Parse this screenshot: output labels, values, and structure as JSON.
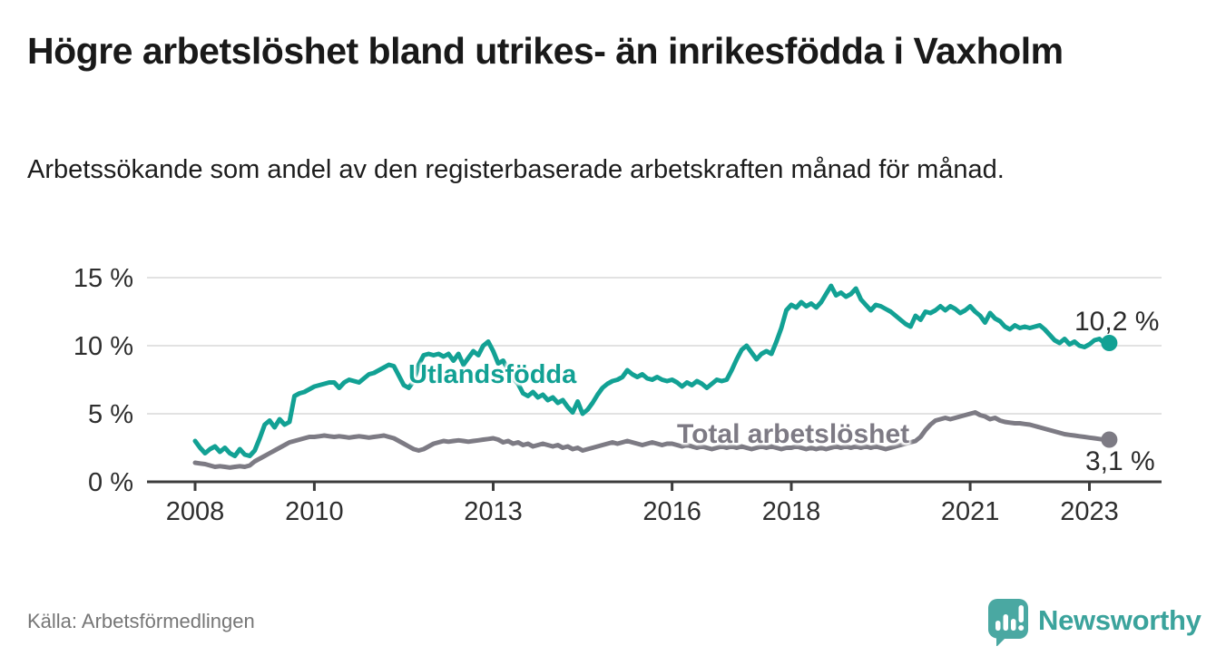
{
  "header": {
    "title": "Högre arbetslöshet bland utrikes- än inrikesfödda i Vaxholm",
    "subtitle": "Arbetssökande som andel av den registerbaserade arbetskraften månad för månad."
  },
  "footer": {
    "source": "Källa: Arbetsförmedlingen",
    "brand": "Newsworthy"
  },
  "colors": {
    "utlandsfodda_line": "#12a194",
    "total_line": "#7d7b84",
    "gridline": "#d9d9d9",
    "axis": "#3c3c3c",
    "title_text": "#191919",
    "tick_text": "#2e2e2e",
    "source_text": "#767676",
    "brand_teal": "#4aa8a2"
  },
  "chart_data": {
    "type": "line",
    "title": "Högre arbetslöshet bland utrikes- än inrikesfödda i Vaxholm",
    "xlabel": "",
    "ylabel": "",
    "x_start_year": 2008,
    "frequency": "monthly",
    "ylim": [
      0,
      15
    ],
    "ytick_values": [
      0,
      5,
      10,
      15
    ],
    "yticks": [
      "0 %",
      "5 %",
      "10 %",
      "15 %"
    ],
    "xticks": [
      2008,
      2010,
      2013,
      2016,
      2018,
      2021,
      2023
    ],
    "grid": "horizontal",
    "legend_position": "inline-labels",
    "series": [
      {
        "name": "Utlandsfödda",
        "color": "#12a194",
        "end_label": "10,2 %",
        "end_value": 10.2,
        "values": [
          3.0,
          2.5,
          2.1,
          2.4,
          2.6,
          2.2,
          2.5,
          2.1,
          1.9,
          2.4,
          2.0,
          1.9,
          2.3,
          3.2,
          4.2,
          4.5,
          4.0,
          4.6,
          4.2,
          4.4,
          6.3,
          6.5,
          6.6,
          6.8,
          7.0,
          7.1,
          7.2,
          7.3,
          7.3,
          6.9,
          7.3,
          7.5,
          7.4,
          7.3,
          7.6,
          7.9,
          8.0,
          8.2,
          8.4,
          8.6,
          8.5,
          7.8,
          7.1,
          6.9,
          7.4,
          8.6,
          9.3,
          9.4,
          9.3,
          9.4,
          9.2,
          9.4,
          8.9,
          9.4,
          8.6,
          9.1,
          9.6,
          9.3,
          10.0,
          10.3,
          9.6,
          8.7,
          8.9,
          8.2,
          7.6,
          7.2,
          6.5,
          6.3,
          6.6,
          6.2,
          6.4,
          6.0,
          6.2,
          5.8,
          6.0,
          5.5,
          5.1,
          5.9,
          5.0,
          5.3,
          5.8,
          6.4,
          6.9,
          7.2,
          7.4,
          7.5,
          7.7,
          8.2,
          7.9,
          7.7,
          7.9,
          7.6,
          7.5,
          7.7,
          7.5,
          7.4,
          7.5,
          7.3,
          7.0,
          7.3,
          7.1,
          7.4,
          7.2,
          6.9,
          7.2,
          7.5,
          7.4,
          7.5,
          8.2,
          9.0,
          9.7,
          10.0,
          9.5,
          9.0,
          9.4,
          9.6,
          9.4,
          10.3,
          11.3,
          12.6,
          13.0,
          12.8,
          13.2,
          12.9,
          13.1,
          12.8,
          13.2,
          13.8,
          14.4,
          13.7,
          13.9,
          13.6,
          13.8,
          14.2,
          13.4,
          13.0,
          12.6,
          13.0,
          12.9,
          12.7,
          12.5,
          12.2,
          11.9,
          11.6,
          11.4,
          12.2,
          11.9,
          12.5,
          12.4,
          12.6,
          12.9,
          12.6,
          12.9,
          12.7,
          12.4,
          12.6,
          12.9,
          12.5,
          12.2,
          11.7,
          12.4,
          12.0,
          11.8,
          11.4,
          11.2,
          11.5,
          11.3,
          11.4,
          11.3,
          11.4,
          11.5,
          11.2,
          10.8,
          10.4,
          10.2,
          10.5,
          10.1,
          10.3,
          10.0,
          9.9,
          10.1,
          10.4,
          10.5,
          10.2,
          10.2
        ]
      },
      {
        "name": "Total arbetslöshet",
        "color": "#7d7b84",
        "end_label": "3,1 %",
        "end_value": 3.1,
        "values": [
          1.4,
          1.35,
          1.3,
          1.2,
          1.1,
          1.15,
          1.1,
          1.05,
          1.1,
          1.15,
          1.1,
          1.2,
          1.5,
          1.7,
          1.9,
          2.1,
          2.3,
          2.5,
          2.7,
          2.9,
          3.0,
          3.1,
          3.2,
          3.3,
          3.3,
          3.35,
          3.4,
          3.35,
          3.3,
          3.35,
          3.3,
          3.25,
          3.3,
          3.35,
          3.3,
          3.25,
          3.3,
          3.35,
          3.4,
          3.3,
          3.2,
          3.0,
          2.8,
          2.6,
          2.4,
          2.3,
          2.4,
          2.6,
          2.8,
          2.9,
          3.0,
          2.95,
          3.0,
          3.05,
          3.0,
          2.95,
          3.0,
          3.05,
          3.1,
          3.15,
          3.2,
          3.1,
          2.9,
          3.0,
          2.8,
          2.9,
          2.7,
          2.8,
          2.6,
          2.7,
          2.8,
          2.7,
          2.6,
          2.7,
          2.5,
          2.6,
          2.4,
          2.5,
          2.3,
          2.4,
          2.5,
          2.6,
          2.7,
          2.8,
          2.9,
          2.8,
          2.9,
          3.0,
          2.9,
          2.8,
          2.7,
          2.8,
          2.9,
          2.8,
          2.7,
          2.8,
          2.8,
          2.7,
          2.6,
          2.7,
          2.6,
          2.5,
          2.6,
          2.5,
          2.4,
          2.5,
          2.6,
          2.5,
          2.6,
          2.5,
          2.6,
          2.5,
          2.4,
          2.5,
          2.6,
          2.5,
          2.6,
          2.5,
          2.4,
          2.5,
          2.5,
          2.6,
          2.5,
          2.4,
          2.5,
          2.4,
          2.5,
          2.4,
          2.5,
          2.6,
          2.5,
          2.6,
          2.5,
          2.6,
          2.5,
          2.6,
          2.5,
          2.6,
          2.5,
          2.4,
          2.5,
          2.6,
          2.7,
          2.8,
          2.9,
          3.0,
          3.3,
          3.8,
          4.2,
          4.5,
          4.6,
          4.7,
          4.6,
          4.7,
          4.8,
          4.9,
          5.0,
          5.1,
          4.9,
          4.8,
          4.6,
          4.7,
          4.5,
          4.4,
          4.35,
          4.3,
          4.3,
          4.25,
          4.2,
          4.1,
          4.0,
          3.9,
          3.8,
          3.7,
          3.6,
          3.5,
          3.45,
          3.4,
          3.35,
          3.3,
          3.25,
          3.2,
          3.15,
          3.1,
          3.1
        ]
      }
    ]
  }
}
